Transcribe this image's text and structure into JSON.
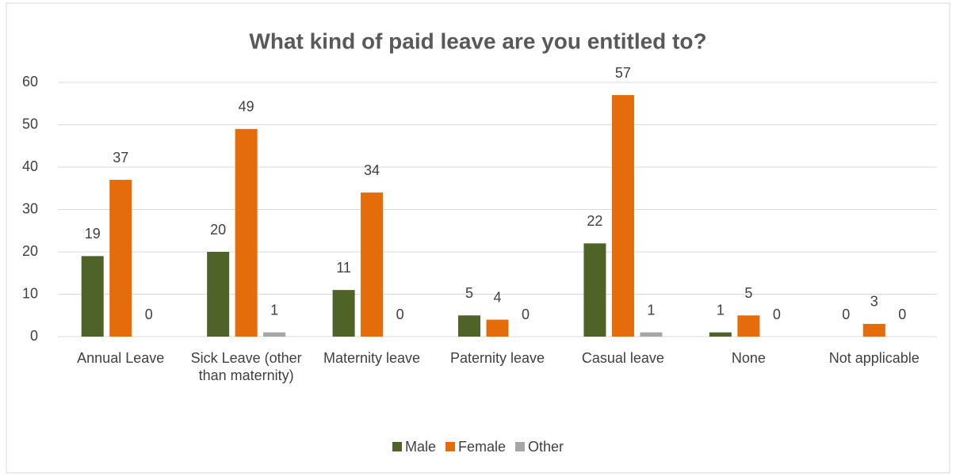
{
  "chart_data": {
    "type": "bar",
    "title": "What kind of paid leave are you entitled to?",
    "categories": [
      "Annual Leave",
      "Sick Leave (other than maternity)",
      "Maternity leave",
      "Paternity leave",
      "Casual leave",
      "None",
      "Not applicable"
    ],
    "series": [
      {
        "name": "Male",
        "color": "#4f6228",
        "values": [
          19,
          20,
          11,
          5,
          22,
          1,
          0
        ]
      },
      {
        "name": "Female",
        "color": "#e46c0a",
        "values": [
          37,
          49,
          34,
          4,
          57,
          5,
          3
        ]
      },
      {
        "name": "Other",
        "color": "#a6a6a6",
        "values": [
          0,
          1,
          0,
          0,
          1,
          0,
          0
        ]
      }
    ],
    "ylim": [
      0,
      60
    ],
    "yticks": [
      0,
      10,
      20,
      30,
      40,
      50,
      60
    ],
    "grid": true,
    "legend": "bottom"
  }
}
